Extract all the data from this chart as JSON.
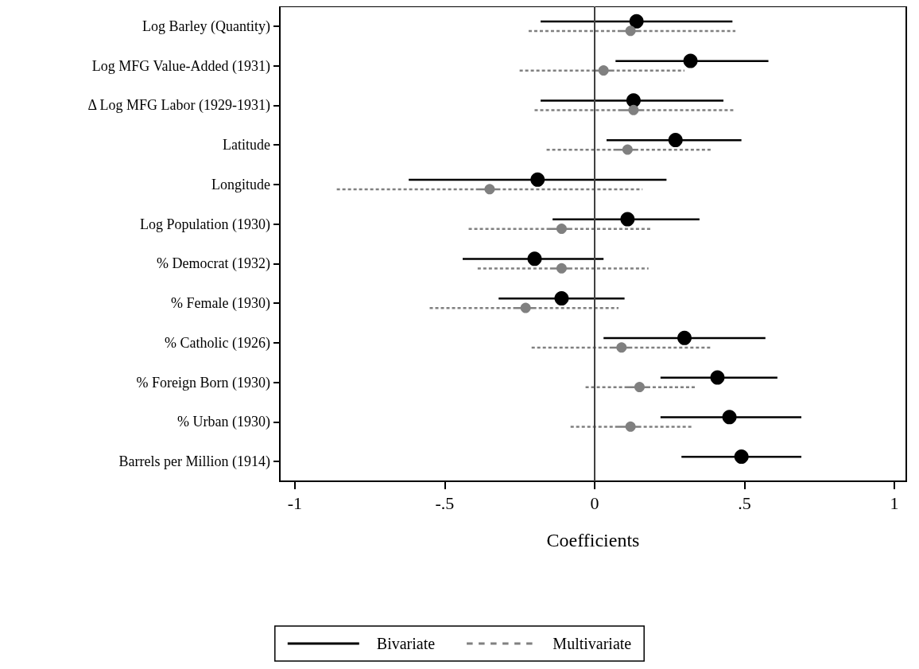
{
  "chart_data": {
    "type": "scatter",
    "orientation": "horizontal",
    "xlabel": "Coefficients",
    "categories": [
      "Log Barley (Quantity)",
      "Log MFG Value-Added (1931)",
      "Δ Log MFG Labor (1929-1931)",
      "Latitude",
      "Longitude",
      "Log Population (1930)",
      "% Democrat (1932)",
      "% Female (1930)",
      "% Catholic (1926)",
      "% Foreign Born (1930)",
      "% Urban (1930)",
      "Barrels per Million (1914)"
    ],
    "series": [
      {
        "name": "Bivariate",
        "color": "#000000",
        "line_style": "solid",
        "values": [
          0.14,
          0.32,
          0.13,
          0.27,
          -0.19,
          0.11,
          -0.2,
          -0.11,
          0.3,
          0.41,
          0.45,
          0.49
        ],
        "errors": [
          [
            -0.18,
            0.46
          ],
          [
            0.07,
            0.58
          ],
          [
            -0.18,
            0.43
          ],
          [
            0.04,
            0.49
          ],
          [
            -0.62,
            0.24
          ],
          [
            -0.14,
            0.35
          ],
          [
            -0.44,
            0.03
          ],
          [
            -0.32,
            0.1
          ],
          [
            0.03,
            0.57
          ],
          [
            0.22,
            0.61
          ],
          [
            0.22,
            0.69
          ],
          [
            0.29,
            0.69
          ]
        ]
      },
      {
        "name": "Multivariate",
        "color": "#808080",
        "line_style": "dashed",
        "values": [
          0.12,
          0.03,
          0.13,
          0.11,
          -0.35,
          -0.11,
          -0.11,
          -0.23,
          0.09,
          0.15,
          0.12,
          null
        ],
        "errors": [
          [
            -0.22,
            0.47
          ],
          [
            -0.25,
            0.3
          ],
          [
            -0.2,
            0.47
          ],
          [
            -0.16,
            0.39
          ],
          [
            -0.86,
            0.16
          ],
          [
            -0.42,
            0.19
          ],
          [
            -0.39,
            0.18
          ],
          [
            -0.55,
            0.08
          ],
          [
            -0.21,
            0.39
          ],
          [
            -0.03,
            0.34
          ],
          [
            -0.08,
            0.33
          ],
          null
        ]
      }
    ],
    "xlim": [
      -1.05,
      1.04
    ],
    "xticks": [
      {
        "value": -1,
        "label": "-1"
      },
      {
        "value": -0.5,
        "label": "-.5"
      },
      {
        "value": 0,
        "label": "0"
      },
      {
        "value": 0.5,
        "label": ".5"
      },
      {
        "value": 1,
        "label": "1"
      }
    ],
    "ref_lines": [
      {
        "axis": "x",
        "value": 0,
        "color": "#404040"
      }
    ],
    "marker": "circle",
    "grid": false,
    "legend": "bottom"
  }
}
